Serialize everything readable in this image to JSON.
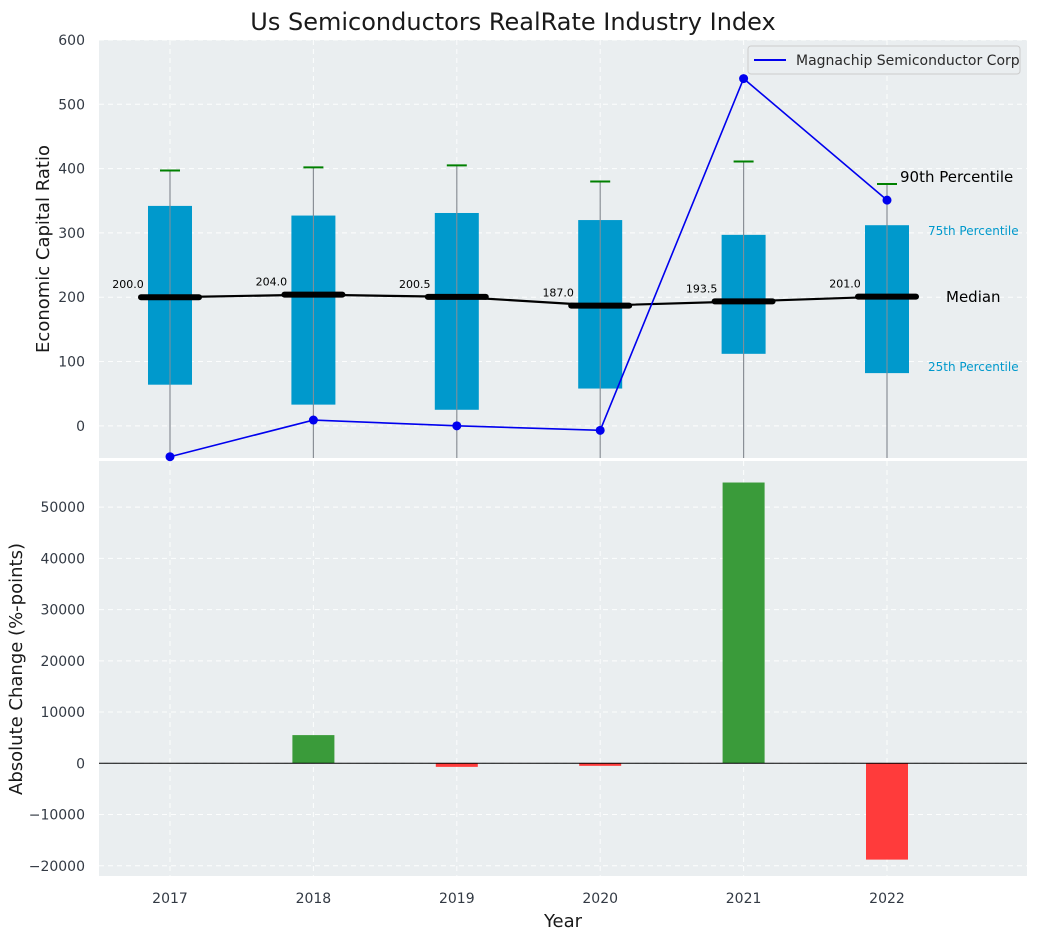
{
  "chart_data": [
    {
      "type": "box",
      "title": "Us Semiconductors RealRate Industry Index",
      "ylabel": "Economic Capital Ratio",
      "ylim": [
        -50,
        600
      ],
      "yticks": [
        0,
        100,
        200,
        300,
        400,
        500,
        600
      ],
      "categories": [
        "2017",
        "2018",
        "2019",
        "2020",
        "2021",
        "2022"
      ],
      "boxes": [
        {
          "year": "2017",
          "p10": -50,
          "p25": 64,
          "median": 200,
          "p75": 342,
          "p90": 397,
          "label": "200.0"
        },
        {
          "year": "2018",
          "p10": -50,
          "p25": 33,
          "median": 204,
          "p75": 327,
          "p90": 402,
          "label": "204.0"
        },
        {
          "year": "2019",
          "p10": -50,
          "p25": 25,
          "median": 200.5,
          "p75": 331,
          "p90": 405,
          "label": "200.5"
        },
        {
          "year": "2020",
          "p10": -50,
          "p25": 58,
          "median": 187,
          "p75": 320,
          "p90": 380,
          "label": "187.0"
        },
        {
          "year": "2021",
          "p10": -50,
          "p25": 112,
          "median": 193.5,
          "p75": 297,
          "p90": 411,
          "label": "193.5"
        },
        {
          "year": "2022",
          "p10": -50,
          "p25": 82,
          "median": 201,
          "p75": 312,
          "p90": 376,
          "label": "201.0"
        }
      ],
      "series": [
        {
          "name": "Magnachip Semiconductor Corp",
          "values": [
            -48,
            9,
            0,
            -7,
            540,
            351
          ]
        }
      ],
      "legend": "top-right",
      "annotations": {
        "p90": "90th Percentile",
        "p75": "75th Percentile",
        "median": "Median",
        "p25": "25th Percentile"
      },
      "colors": {
        "box": "#0099cc",
        "series": "#0000ee",
        "median": "#000000",
        "whisker_cap": "#008000",
        "background": "#eaeef0"
      }
    },
    {
      "type": "bar",
      "ylabel": "Absolute Change (%-points)",
      "xlabel": "Year",
      "ylim": [
        -22000,
        59000
      ],
      "yticks": [
        -20000,
        -10000,
        0,
        10000,
        20000,
        30000,
        40000,
        50000
      ],
      "ytick_labels": [
        "−20000",
        "−10000",
        "0",
        "10000",
        "20000",
        "30000",
        "40000",
        "50000"
      ],
      "categories": [
        "2017",
        "2018",
        "2019",
        "2020",
        "2021",
        "2022"
      ],
      "values": [
        0,
        5500,
        -700,
        -500,
        54800,
        -18800
      ],
      "colors": {
        "positive": "#3a9b3a",
        "negative": "#ff3b3b"
      }
    }
  ]
}
